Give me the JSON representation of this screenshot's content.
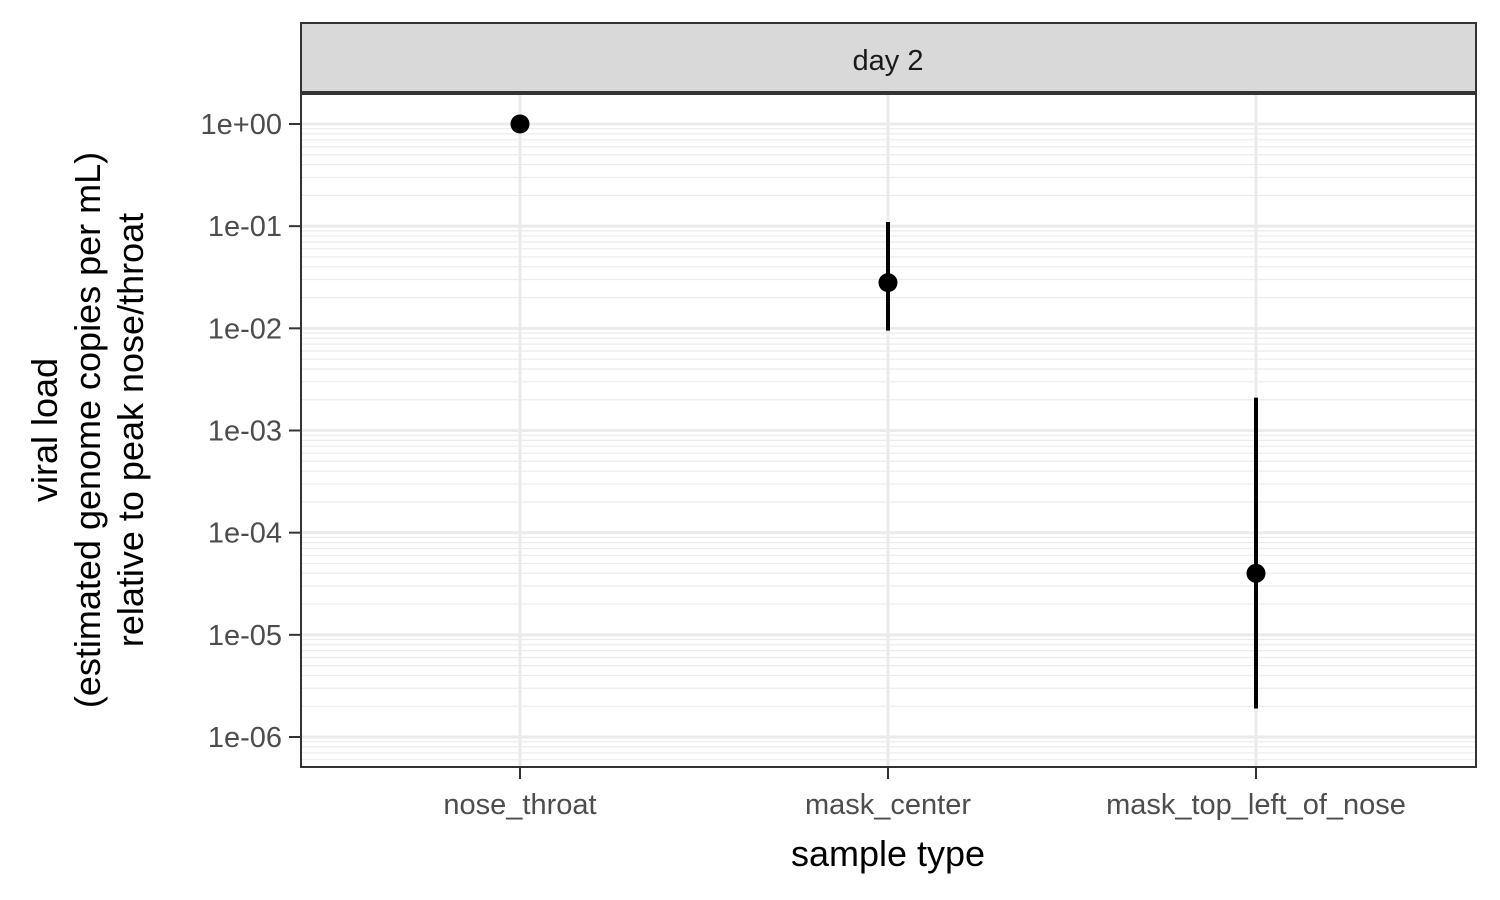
{
  "chart_data": {
    "type": "scatter",
    "facet_label": "day 2",
    "xlabel": "sample type",
    "ylabel_lines": [
      "viral load",
      "(estimated genome copies per mL)",
      "relative to peak nose/throat"
    ],
    "y_scale": "log10",
    "ylim": [
      5e-07,
      2.0
    ],
    "y_ticks": [
      {
        "value": 1,
        "label": "1e+00"
      },
      {
        "value": 0.1,
        "label": "1e-01"
      },
      {
        "value": 0.01,
        "label": "1e-02"
      },
      {
        "value": 0.001,
        "label": "1e-03"
      },
      {
        "value": 0.0001,
        "label": "1e-04"
      },
      {
        "value": 1e-05,
        "label": "1e-05"
      },
      {
        "value": 1e-06,
        "label": "1e-06"
      }
    ],
    "categories": [
      "nose_throat",
      "mask_center",
      "mask_top_left_of_nose"
    ],
    "points": [
      {
        "category": "nose_throat",
        "y": 1.0,
        "low": null,
        "high": null
      },
      {
        "category": "mask_center",
        "y": 0.028,
        "low": 0.0095,
        "high": 0.11
      },
      {
        "category": "mask_top_left_of_nose",
        "y": 4e-05,
        "low": 1.9e-06,
        "high": 0.0021
      }
    ],
    "grid": true,
    "colors": {
      "point": "#000000",
      "panel_border": "#333333",
      "strip_fill": "#d9d9d9",
      "grid": "#ebebeb"
    }
  }
}
